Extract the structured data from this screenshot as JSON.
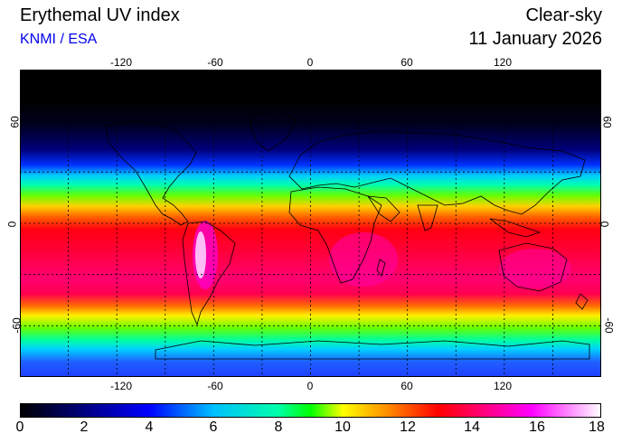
{
  "header": {
    "title": "Erythemal UV index",
    "credit": "KNMI / ESA",
    "sky_type": "Clear-sky",
    "date": "11 January 2026"
  },
  "map": {
    "x_ticks": [
      "-120",
      "-60",
      "0",
      "60",
      "120"
    ],
    "y_ticks": [
      "60",
      "0",
      "-60"
    ],
    "grid": "dotted black graticule every 30 degrees",
    "projection": "equirectangular"
  },
  "colorbar": {
    "labels": [
      "0",
      "2",
      "4",
      "6",
      "8",
      "10",
      "12",
      "14",
      "16",
      "18"
    ],
    "min": 0,
    "max": 18,
    "colors": [
      "#000000",
      "#000080",
      "#0000ff",
      "#00c0ff",
      "#00ffaa",
      "#00ff00",
      "#ffff00",
      "#ff8000",
      "#ff0000",
      "#ff0080",
      "#ff00ff",
      "#ffffff"
    ]
  }
}
